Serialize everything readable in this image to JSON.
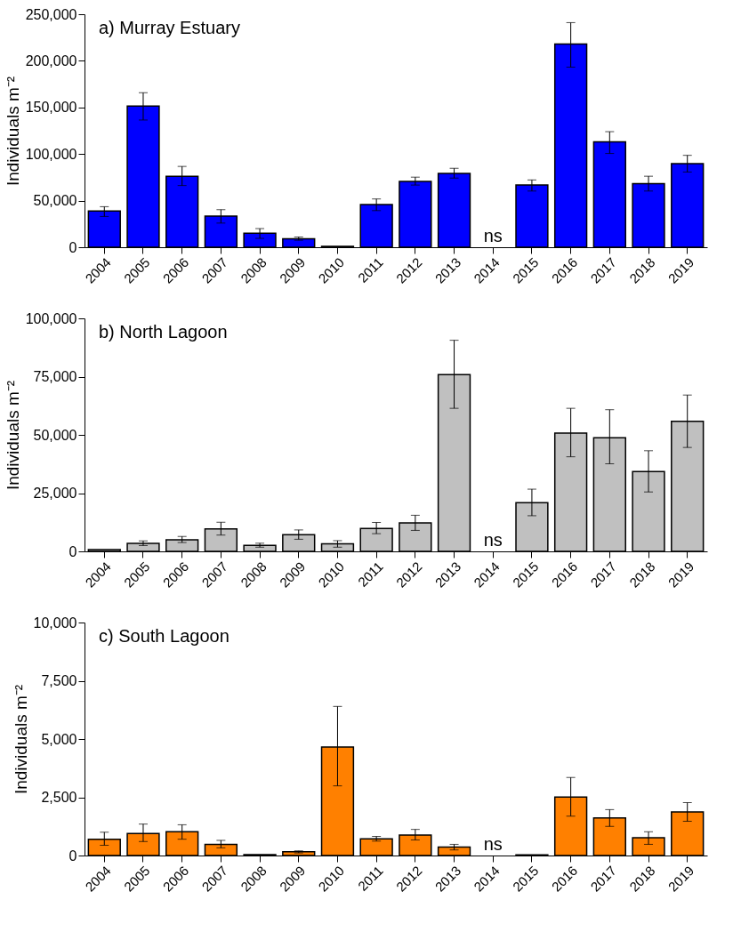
{
  "chart_data": [
    {
      "type": "bar",
      "title": "a) Murray Estuary",
      "ylabel": "Individuals m⁻²",
      "color": "#0000ff",
      "categories": [
        "2004",
        "2005",
        "2006",
        "2007",
        "2008",
        "2009",
        "2010",
        "2011",
        "2012",
        "2013",
        "2014",
        "2015",
        "2016",
        "2017",
        "2018",
        "2019"
      ],
      "values": [
        38800,
        151400,
        76200,
        33400,
        15000,
        9000,
        1000,
        45800,
        70700,
        79200,
        null,
        66700,
        218100,
        113000,
        68200,
        89600
      ],
      "errors": [
        [
          33000,
          43500
        ],
        [
          136500,
          165800
        ],
        [
          66200,
          86700
        ],
        [
          25900,
          40300
        ],
        [
          9500,
          20000
        ],
        [
          7500,
          11000
        ],
        null,
        [
          39300,
          51800
        ],
        [
          66700,
          75200
        ],
        [
          74200,
          84700
        ],
        null,
        [
          60300,
          72200
        ],
        [
          193200,
          241000
        ],
        [
          100600,
          124000
        ],
        [
          60300,
          76200
        ],
        [
          80700,
          98600
        ]
      ],
      "ylim": [
        0,
        250000
      ],
      "yticks": [
        0,
        {
          "value": 50000,
          "label": "50,000"
        },
        {
          "value": 100000,
          "label": "100,000"
        },
        {
          "value": 150000,
          "label": "150,000"
        },
        {
          "value": 200000,
          "label": "200,000"
        },
        {
          "value": 250000,
          "label": "250,000"
        }
      ],
      "annotations": [
        "ns"
      ]
    },
    {
      "type": "bar",
      "title": "b) North Lagoon",
      "ylabel": "Individuals m⁻²",
      "color": "#c0c0c0",
      "categories": [
        "2004",
        "2005",
        "2006",
        "2007",
        "2008",
        "2009",
        "2010",
        "2011",
        "2012",
        "2013",
        "2014",
        "2015",
        "2016",
        "2017",
        "2018",
        "2019"
      ],
      "values": [
        800,
        3400,
        5000,
        9600,
        2600,
        7200,
        3200,
        9800,
        12200,
        75900,
        null,
        20900,
        50800,
        48800,
        34300,
        55800
      ],
      "errors": [
        null,
        [
          2500,
          4500
        ],
        [
          3800,
          6400
        ],
        [
          7000,
          12500
        ],
        [
          1800,
          3500
        ],
        [
          5200,
          9200
        ],
        [
          1800,
          4600
        ],
        [
          7600,
          12400
        ],
        [
          9000,
          15500
        ],
        [
          61400,
          90600
        ],
        null,
        [
          15300,
          26700
        ],
        [
          40600,
          61400
        ],
        [
          37600,
          60800
        ],
        [
          25500,
          43200
        ],
        [
          44600,
          67100
        ]
      ],
      "ylim": [
        0,
        100000
      ],
      "yticks": [
        0,
        {
          "value": 25000,
          "label": "25,000"
        },
        {
          "value": 50000,
          "label": "50,000"
        },
        {
          "value": 75000,
          "label": "75,000"
        },
        {
          "value": 100000,
          "label": "100,000"
        }
      ],
      "annotations": [
        "ns"
      ]
    },
    {
      "type": "bar",
      "title": "c) South Lagoon",
      "ylabel": "Individuals m⁻²",
      "color": "#ff8000",
      "categories": [
        "2004",
        "2005",
        "2006",
        "2007",
        "2008",
        "2009",
        "2010",
        "2011",
        "2012",
        "2013",
        "2014",
        "2015",
        "2016",
        "2017",
        "2018",
        "2019"
      ],
      "values": [
        700,
        940,
        1020,
        480,
        40,
        160,
        4660,
        720,
        880,
        360,
        null,
        30,
        2510,
        1610,
        760,
        1870
      ],
      "errors": [
        [
          440,
          1000
        ],
        [
          600,
          1350
        ],
        [
          700,
          1320
        ],
        [
          330,
          650
        ],
        null,
        [
          110,
          200
        ],
        [
          2990,
          6400
        ],
        [
          620,
          820
        ],
        [
          670,
          1120
        ],
        [
          240,
          480
        ],
        null,
        null,
        [
          1690,
          3350
        ],
        [
          1250,
          1970
        ],
        [
          480,
          1020
        ],
        [
          1470,
          2270
        ]
      ],
      "ylim": [
        0,
        10000
      ],
      "yticks": [
        0,
        {
          "value": 2500,
          "label": "2,500"
        },
        {
          "value": 5000,
          "label": "5,000"
        },
        {
          "value": 7500,
          "label": "7,500"
        },
        {
          "value": 10000,
          "label": "10,000"
        }
      ],
      "annotations": [
        "ns"
      ]
    }
  ]
}
